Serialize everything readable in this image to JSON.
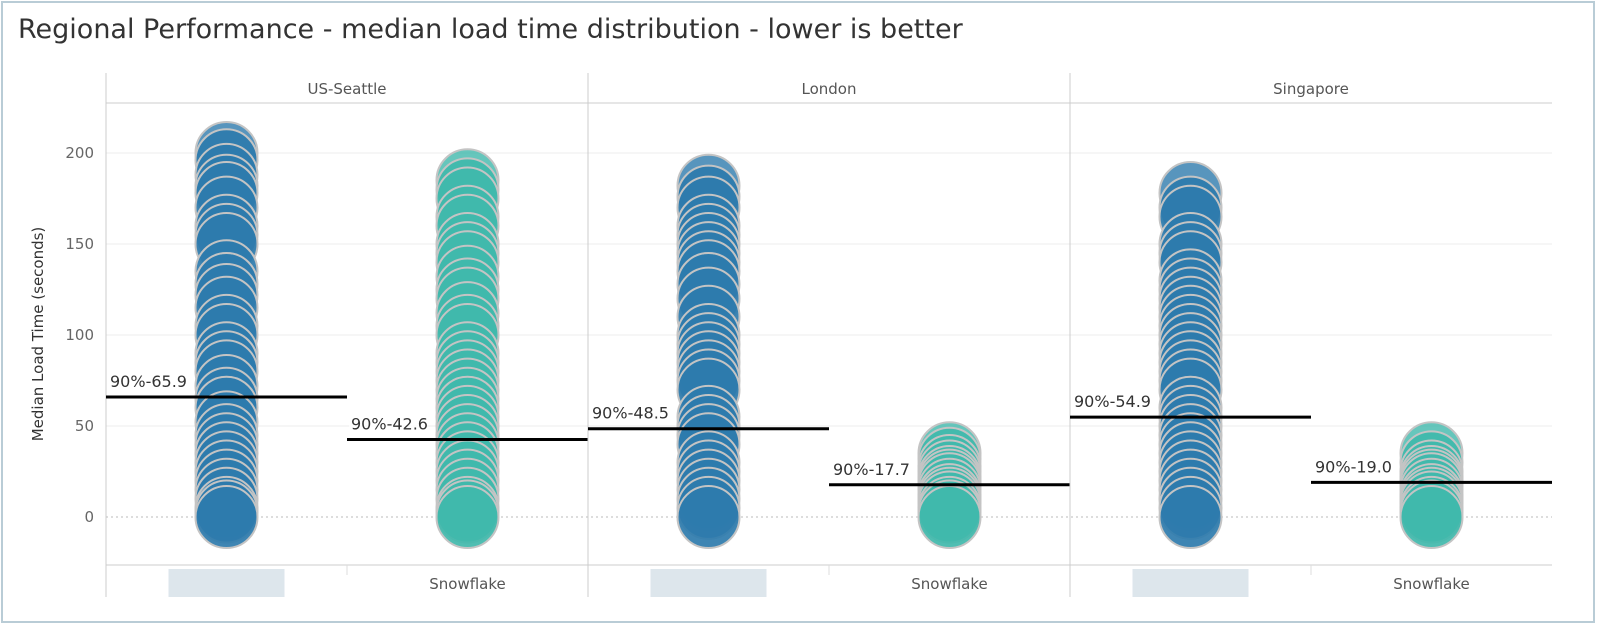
{
  "title": "Regional Performance - median load time distribution - lower is better",
  "chart_data": {
    "type": "scatter",
    "title": "Regional Performance - median load time distribution - lower is better",
    "ylabel": "Median Load Time (seconds)",
    "ylim": [
      -25,
      225
    ],
    "yticks": [
      0,
      50,
      100,
      150,
      200
    ],
    "grid": true,
    "colors": {
      "baseline": "#2e7bad",
      "Snowflake": "#40b8ab",
      "outline": "#c4c4c4",
      "refline": "#000000"
    },
    "panels": [
      {
        "region": "US-Seattle",
        "categories": [
          {
            "label": "",
            "series": "baseline",
            "ref_label": "90%-65.9",
            "ref_value": 65.9,
            "values": [
              200,
              196,
              188,
              182,
              178,
              170,
              160,
              155,
              150,
              135,
              128,
              122,
              115,
              105,
              100,
              90,
              85,
              80,
              72,
              65,
              60,
              52,
              45,
              40,
              35,
              30,
              25,
              20,
              15,
              10,
              5,
              3,
              0
            ]
          },
          {
            "label": "Snowflake",
            "series": "Snowflake",
            "ref_label": "90%-42.6",
            "ref_value": 42.6,
            "values": [
              185,
              180,
              175,
              165,
              160,
              150,
              145,
              140,
              132,
              125,
              120,
              112,
              105,
              100,
              90,
              85,
              80,
              75,
              70,
              65,
              60,
              55,
              50,
              45,
              40,
              35,
              30,
              25,
              20,
              15,
              10,
              5,
              3,
              0
            ]
          }
        ]
      },
      {
        "region": "London",
        "categories": [
          {
            "label": "",
            "series": "baseline",
            "ref_label": "90%-48.5",
            "ref_value": 48.5,
            "values": [
              182,
              176,
              170,
              160,
              155,
              150,
              145,
              140,
              135,
              128,
              120,
              110,
              100,
              95,
              90,
              85,
              80,
              75,
              70,
              55,
              50,
              45,
              40,
              30,
              25,
              20,
              15,
              10,
              5,
              0
            ]
          },
          {
            "label": "Snowflake",
            "series": "Snowflake",
            "ref_label": "90%-17.7",
            "ref_value": 17.7,
            "values": [
              35,
              32,
              28,
              25,
              22,
              20,
              18,
              15,
              12,
              10,
              8,
              5,
              3,
              0
            ]
          }
        ]
      },
      {
        "region": "Singapore",
        "categories": [
          {
            "label": "",
            "series": "baseline",
            "ref_label": "90%-54.9",
            "ref_value": 54.9,
            "values": [
              178,
              170,
              165,
              150,
              145,
              140,
              130,
              125,
              120,
              115,
              110,
              105,
              100,
              95,
              90,
              85,
              80,
              75,
              70,
              60,
              55,
              50,
              45,
              40,
              35,
              30,
              25,
              20,
              15,
              10,
              5,
              0
            ]
          },
          {
            "label": "Snowflake",
            "series": "Snowflake",
            "ref_label": "90%-19.0",
            "ref_value": 19.0,
            "values": [
              35,
              30,
              25,
              22,
              20,
              18,
              15,
              12,
              10,
              8,
              5,
              3,
              0
            ]
          }
        ]
      }
    ]
  }
}
